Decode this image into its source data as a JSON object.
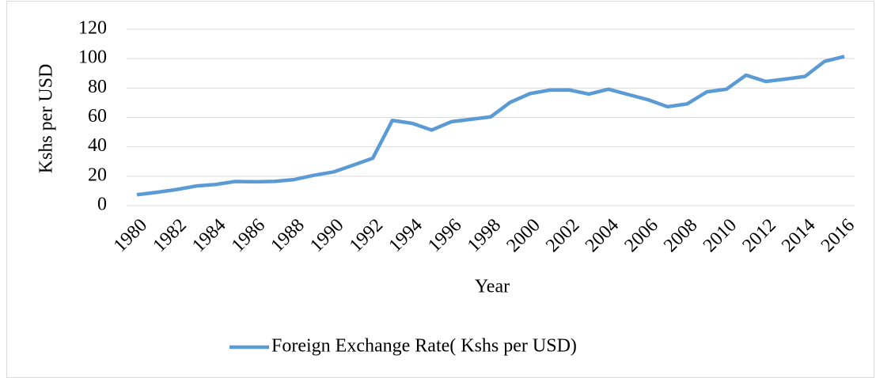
{
  "chart_data": {
    "type": "line",
    "x_label": "Year",
    "y_label": "Kshs per USD",
    "x": [
      1980,
      1981,
      1982,
      1983,
      1984,
      1985,
      1986,
      1987,
      1988,
      1989,
      1990,
      1991,
      1992,
      1993,
      1994,
      1995,
      1996,
      1997,
      1998,
      1999,
      2000,
      2001,
      2002,
      2003,
      2004,
      2005,
      2006,
      2007,
      2008,
      2009,
      2010,
      2011,
      2012,
      2013,
      2014,
      2015,
      2016
    ],
    "series": [
      {
        "name": "Foreign Exchange Rate( Kshs per USD)",
        "color": "#5b9bd5",
        "values": [
          7.4,
          9,
          10.9,
          13.3,
          14.4,
          16.4,
          16.2,
          16.5,
          17.7,
          20.6,
          22.9,
          27.5,
          32.2,
          58,
          56,
          51.4,
          57.1,
          58.7,
          60.4,
          70.3,
          76.2,
          78.6,
          78.7,
          75.9,
          79.2,
          75.6,
          72.1,
          67.3,
          69.2,
          77.4,
          79.2,
          88.8,
          84.5,
          86.1,
          87.9,
          98.2,
          101.5
        ]
      }
    ],
    "xlim": [
      1980,
      2016
    ],
    "xticks": [
      1980,
      1982,
      1984,
      1986,
      1988,
      1990,
      1992,
      1994,
      1996,
      1998,
      2000,
      2002,
      2004,
      2006,
      2008,
      2010,
      2012,
      2014,
      2016
    ],
    "ylim": [
      0,
      120
    ],
    "yticks": [
      0,
      20,
      40,
      60,
      80,
      100,
      120
    ],
    "grid": true,
    "legend": "bottom"
  }
}
